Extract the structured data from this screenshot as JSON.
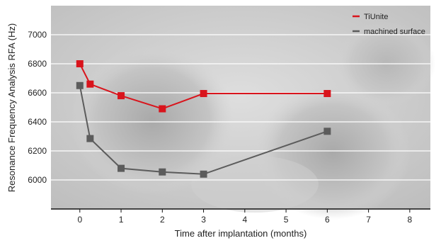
{
  "chart_data": {
    "type": "line",
    "xlabel": "Time after implantation (months)",
    "ylabel": "Resonance Frequency Analysis RFA (Hz)",
    "xlim": [
      -0.7,
      8.5
    ],
    "ylim": [
      5800,
      7200
    ],
    "x_ticks": [
      "0",
      "1",
      "2",
      "3",
      "4",
      "5",
      "6",
      "7",
      "8"
    ],
    "y_ticks": [
      "6000",
      "6200",
      "6400",
      "6600",
      "6800",
      "7000"
    ],
    "grid": true,
    "legend_position": "top-right",
    "series": [
      {
        "name": "TiUnite",
        "color": "#d9141c",
        "x": [
          0,
          0.25,
          1,
          2,
          3,
          6
        ],
        "y": [
          6800,
          6660,
          6580,
          6490,
          6595,
          6595
        ]
      },
      {
        "name": "machined surface",
        "color": "#5c5c5c",
        "x": [
          0,
          0.25,
          1,
          2,
          3,
          6
        ],
        "y": [
          6650,
          6285,
          6080,
          6055,
          6040,
          6335
        ]
      }
    ]
  }
}
